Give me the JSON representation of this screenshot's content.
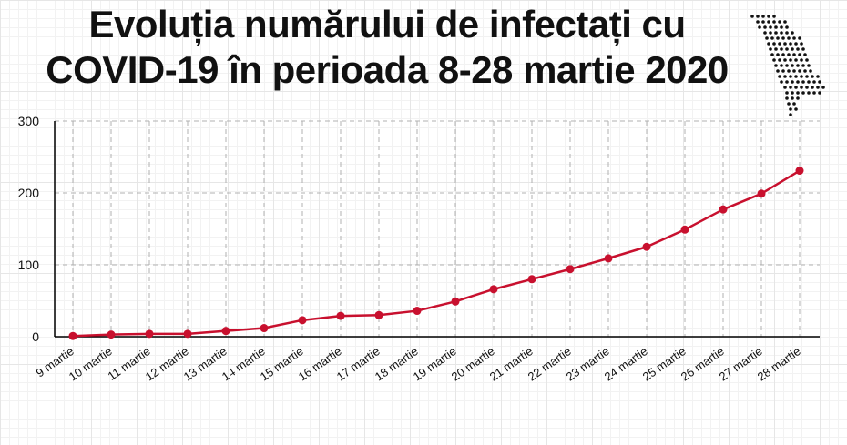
{
  "title_line1": "Evoluția numărului de infectați cu",
  "title_line2": "COVID-19 în perioada 8-28 martie 2020",
  "map_icon": "moldova-dot-map",
  "colors": {
    "line": "#c8102e",
    "axis": "#000000",
    "grid": "#b0b0b0"
  },
  "chart_data": {
    "type": "line",
    "title": "Evoluția numărului de infectați cu COVID-19 în perioada 8-28 martie 2020",
    "xlabel": "",
    "ylabel": "",
    "categories": [
      "9 martie",
      "10 martie",
      "11 martie",
      "12 martie",
      "13 martie",
      "14 martie",
      "15 martie",
      "16 martie",
      "17 martie",
      "18 martie",
      "19 martie",
      "20 martie",
      "21 martie",
      "22 martie",
      "23 martie",
      "24 martie",
      "25 martie",
      "26 martie",
      "27 martie",
      "28 martie"
    ],
    "values": [
      1,
      3,
      4,
      4,
      8,
      12,
      23,
      29,
      30,
      36,
      49,
      66,
      80,
      94,
      109,
      125,
      149,
      177,
      199,
      231
    ],
    "ylim": [
      0,
      300
    ],
    "yticks": [
      0,
      100,
      200,
      300
    ],
    "grid": true,
    "legend": "none"
  }
}
